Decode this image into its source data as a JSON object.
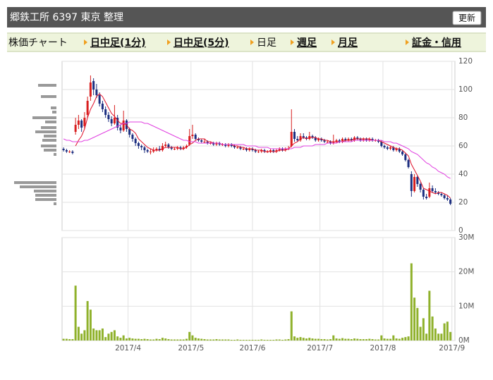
{
  "header": {
    "title": "郷鉄工所 6397 東京 整理",
    "button": "更新"
  },
  "nav": [
    {
      "label": "株価チャート",
      "link": false
    },
    {
      "label": "日中足(1分)",
      "link": true
    },
    {
      "label": "日中足(5分)",
      "link": true
    },
    {
      "label": "日足",
      "link": false
    },
    {
      "label": "週足",
      "link": true
    },
    {
      "label": "月足",
      "link": true
    },
    {
      "label": "証金・信用",
      "link": true
    }
  ],
  "chart_data": [
    {
      "type": "candlestick",
      "up_color": "#d81e1e",
      "down_color": "#1c2e80",
      "grid": true,
      "xlim": [
        -0.5,
        130.5
      ],
      "ylim": [
        0,
        120
      ],
      "yticks": [
        0,
        20,
        40,
        60,
        80,
        100,
        120
      ],
      "xticks": [
        21.5,
        42.5,
        63,
        85.5,
        106.5,
        129.5
      ],
      "ohlc": [
        [
          58,
          59,
          56,
          57
        ],
        [
          57,
          58,
          55,
          56
        ],
        [
          56,
          57,
          55,
          56
        ],
        [
          56,
          57,
          54,
          55
        ],
        [
          70,
          80,
          68,
          75
        ],
        [
          75,
          82,
          72,
          78
        ],
        [
          78,
          79,
          70,
          73
        ],
        [
          74,
          84,
          72,
          80
        ],
        [
          82,
          95,
          80,
          92
        ],
        [
          95,
          110,
          92,
          105
        ],
        [
          106,
          108,
          96,
          100
        ],
        [
          100,
          104,
          94,
          96
        ],
        [
          96,
          98,
          88,
          90
        ],
        [
          90,
          92,
          84,
          86
        ],
        [
          86,
          88,
          80,
          82
        ],
        [
          82,
          84,
          77,
          79
        ],
        [
          79,
          81,
          74,
          76
        ],
        [
          76,
          89,
          75,
          80
        ],
        [
          80,
          82,
          71,
          73
        ],
        [
          73,
          75,
          69,
          71
        ],
        [
          71,
          85,
          70,
          78
        ],
        [
          78,
          79,
          70,
          72
        ],
        [
          72,
          73,
          66,
          68
        ],
        [
          68,
          69,
          63,
          65
        ],
        [
          65,
          66,
          60,
          62
        ],
        [
          62,
          63,
          58,
          60
        ],
        [
          60,
          61,
          57,
          59
        ],
        [
          59,
          60,
          55,
          57
        ],
        [
          57,
          58,
          55,
          56
        ],
        [
          56,
          58,
          54,
          56
        ],
        [
          56,
          59,
          55,
          57
        ],
        [
          57,
          59,
          56,
          58
        ],
        [
          58,
          60,
          56,
          57
        ],
        [
          57,
          62,
          56,
          60
        ],
        [
          60,
          63,
          59,
          61
        ],
        [
          61,
          62,
          58,
          59
        ],
        [
          59,
          60,
          57,
          58
        ],
        [
          58,
          59,
          57,
          58
        ],
        [
          58,
          60,
          57,
          59
        ],
        [
          59,
          60,
          57,
          58
        ],
        [
          58,
          60,
          57,
          59
        ],
        [
          59,
          61,
          58,
          60
        ],
        [
          61,
          72,
          60,
          67
        ],
        [
          67,
          75,
          65,
          68
        ],
        [
          68,
          69,
          64,
          65
        ],
        [
          65,
          66,
          63,
          64
        ],
        [
          64,
          65,
          62,
          63
        ],
        [
          63,
          65,
          62,
          63
        ],
        [
          63,
          64,
          61,
          62
        ],
        [
          62,
          63,
          61,
          62
        ],
        [
          62,
          63,
          60,
          61
        ],
        [
          61,
          63,
          60,
          62
        ],
        [
          62,
          63,
          60,
          61
        ],
        [
          61,
          62,
          60,
          61
        ],
        [
          61,
          62,
          59,
          60
        ],
        [
          60,
          62,
          59,
          61
        ],
        [
          61,
          62,
          59,
          60
        ],
        [
          60,
          61,
          58,
          59
        ],
        [
          59,
          60,
          58,
          59
        ],
        [
          59,
          60,
          57,
          58
        ],
        [
          58,
          59,
          57,
          58
        ],
        [
          58,
          59,
          56,
          57
        ],
        [
          57,
          59,
          56,
          58
        ],
        [
          58,
          59,
          56,
          57
        ],
        [
          57,
          58,
          55,
          56
        ],
        [
          56,
          57,
          55,
          56
        ],
        [
          56,
          58,
          55,
          57
        ],
        [
          57,
          58,
          55,
          56
        ],
        [
          56,
          57,
          55,
          56
        ],
        [
          56,
          58,
          55,
          57
        ],
        [
          57,
          58,
          55,
          56
        ],
        [
          56,
          58,
          55,
          57
        ],
        [
          57,
          59,
          56,
          58
        ],
        [
          58,
          59,
          56,
          57
        ],
        [
          57,
          59,
          56,
          58
        ],
        [
          58,
          60,
          57,
          58
        ],
        [
          60,
          86,
          59,
          70
        ],
        [
          70,
          72,
          63,
          65
        ],
        [
          65,
          67,
          63,
          64
        ],
        [
          64,
          69,
          63,
          67
        ],
        [
          67,
          69,
          65,
          66
        ],
        [
          66,
          67,
          64,
          65
        ],
        [
          65,
          70,
          64,
          67
        ],
        [
          67,
          68,
          65,
          66
        ],
        [
          66,
          67,
          63,
          64
        ],
        [
          64,
          66,
          63,
          65
        ],
        [
          65,
          66,
          63,
          64
        ],
        [
          64,
          65,
          62,
          63
        ],
        [
          63,
          64,
          62,
          63
        ],
        [
          63,
          64,
          61,
          62
        ],
        [
          62,
          68,
          61,
          63
        ],
        [
          63,
          65,
          62,
          64
        ],
        [
          64,
          65,
          62,
          63
        ],
        [
          63,
          66,
          62,
          65
        ],
        [
          65,
          66,
          63,
          64
        ],
        [
          64,
          66,
          63,
          65
        ],
        [
          65,
          66,
          63,
          64
        ],
        [
          64,
          67,
          63,
          66
        ],
        [
          66,
          67,
          64,
          65
        ],
        [
          65,
          66,
          63,
          64
        ],
        [
          64,
          66,
          63,
          65
        ],
        [
          65,
          66,
          63,
          64
        ],
        [
          64,
          66,
          63,
          65
        ],
        [
          65,
          66,
          63,
          64
        ],
        [
          64,
          65,
          63,
          64
        ],
        [
          64,
          65,
          62,
          63
        ],
        [
          63,
          64,
          59,
          60
        ],
        [
          60,
          61,
          58,
          59
        ],
        [
          59,
          60,
          57,
          58
        ],
        [
          58,
          60,
          57,
          59
        ],
        [
          59,
          60,
          56,
          57
        ],
        [
          57,
          59,
          56,
          58
        ],
        [
          58,
          59,
          55,
          56
        ],
        [
          56,
          57,
          53,
          54
        ],
        [
          54,
          55,
          49,
          50
        ],
        [
          50,
          51,
          44,
          45
        ],
        [
          40,
          42,
          24,
          28
        ],
        [
          28,
          40,
          27,
          38
        ],
        [
          38,
          39,
          31,
          33
        ],
        [
          33,
          34,
          27,
          29
        ],
        [
          29,
          30,
          22,
          24
        ],
        [
          24,
          26,
          22,
          23
        ],
        [
          24,
          34,
          23,
          30
        ],
        [
          30,
          32,
          27,
          28
        ],
        [
          28,
          30,
          26,
          27
        ],
        [
          27,
          28,
          25,
          26
        ],
        [
          26,
          27,
          24,
          25
        ],
        [
          25,
          26,
          22,
          23
        ],
        [
          23,
          25,
          21,
          22
        ],
        [
          22,
          23,
          18,
          19
        ]
      ],
      "series": [
        {
          "color": "#e0102a",
          "values": [
            null,
            null,
            null,
            null,
            60,
            64,
            67,
            72,
            80,
            86,
            90,
            95,
            97,
            95,
            91,
            87,
            83,
            81,
            78,
            76,
            76,
            75,
            72,
            71,
            69,
            65,
            63,
            61,
            59,
            58,
            57,
            57,
            57,
            58,
            59,
            59,
            59,
            59,
            59,
            58,
            58,
            59,
            61,
            62,
            64,
            65,
            65,
            65,
            63,
            63,
            62,
            62,
            62,
            61,
            61,
            61,
            61,
            60,
            60,
            59,
            59,
            58,
            58,
            58,
            57,
            57,
            57,
            56,
            56,
            56,
            56,
            56,
            57,
            57,
            57,
            58,
            60,
            62,
            63,
            65,
            66,
            65,
            66,
            66,
            66,
            65,
            65,
            64,
            64,
            63,
            63,
            63,
            63,
            63,
            64,
            64,
            64,
            65,
            65,
            65,
            65,
            65,
            65,
            64,
            64,
            64,
            63,
            62,
            61,
            60,
            59,
            58,
            58,
            57,
            55,
            53,
            47,
            43,
            39,
            35,
            30,
            29,
            28,
            27,
            26,
            27,
            27,
            26,
            25,
            23
          ]
        },
        {
          "color": "#e040e0",
          "values": [
            65,
            64,
            64,
            63,
            63,
            63,
            63,
            64,
            64,
            65,
            66,
            67,
            68,
            69,
            70,
            71,
            72,
            73,
            74,
            75,
            76,
            76,
            77,
            77,
            77,
            77,
            77,
            76,
            76,
            75,
            74,
            73,
            72,
            71,
            70,
            69,
            68,
            67,
            66,
            65,
            64,
            64,
            63,
            63,
            63,
            62,
            62,
            62,
            62,
            62,
            62,
            62,
            62,
            61,
            61,
            61,
            61,
            61,
            61,
            61,
            61,
            60,
            60,
            60,
            60,
            59,
            59,
            59,
            59,
            58,
            58,
            58,
            58,
            58,
            58,
            58,
            58,
            59,
            59,
            59,
            60,
            60,
            60,
            60,
            61,
            61,
            61,
            61,
            62,
            62,
            62,
            62,
            63,
            63,
            63,
            63,
            63,
            64,
            64,
            64,
            64,
            64,
            64,
            64,
            64,
            64,
            64,
            63,
            63,
            63,
            62,
            62,
            61,
            60,
            59,
            58,
            56,
            55,
            54,
            52,
            50,
            48,
            47,
            45,
            44,
            42,
            41,
            40,
            38,
            37
          ]
        }
      ],
      "volume_by_price": {
        "color": "#999999",
        "prices": [
          103,
          95,
          87,
          84,
          80,
          77,
          73,
          70,
          67,
          64,
          60,
          57,
          54,
          34,
          31,
          28,
          25,
          22,
          19
        ],
        "volumes": [
          26,
          22,
          8,
          6,
          34,
          16,
          22,
          30,
          18,
          20,
          22,
          18,
          4,
          60,
          52,
          32,
          30,
          30,
          4
        ]
      }
    },
    {
      "type": "bar",
      "color": "#8fb12b",
      "grid": true,
      "xlim": [
        -0.5,
        130.5
      ],
      "ylim": [
        0,
        30
      ],
      "yticks": [
        {
          "value": 0,
          "label": "0M"
        },
        {
          "value": 10,
          "label": "10M"
        },
        {
          "value": 20,
          "label": "20M"
        },
        {
          "value": 30,
          "label": "30M"
        }
      ],
      "xticks": [
        {
          "value": 21.5,
          "label": "2017/4"
        },
        {
          "value": 42.5,
          "label": "2017/5"
        },
        {
          "value": 63,
          "label": "2017/6"
        },
        {
          "value": 85.5,
          "label": "2017/7"
        },
        {
          "value": 106.5,
          "label": "2017/8"
        },
        {
          "value": 129.5,
          "label": "2017/9"
        }
      ],
      "values": [
        0.5,
        0.5,
        0.4,
        0.4,
        16,
        4,
        2,
        3,
        11.5,
        9,
        3.5,
        3,
        3,
        3.5,
        1,
        2,
        2.5,
        3,
        1.2,
        0.8,
        1.5,
        0.6,
        0.8,
        0.6,
        0.5,
        0.5,
        0.4,
        0.5,
        0.4,
        0.3,
        0.3,
        0.5,
        0.4,
        0.8,
        0.6,
        0.4,
        0.3,
        0.3,
        0.3,
        0.3,
        0.3,
        0.5,
        2.5,
        1.5,
        0.8,
        0.6,
        0.5,
        0.4,
        0.3,
        0.3,
        0.3,
        0.4,
        0.3,
        0.3,
        0.3,
        0.3,
        0.2,
        0.2,
        0.3,
        0.2,
        0.2,
        0.2,
        0.2,
        0.2,
        0.2,
        0.2,
        0.3,
        0.2,
        0.2,
        0.2,
        0.2,
        0.3,
        0.3,
        0.2,
        0.3,
        0.4,
        8.5,
        1.2,
        0.8,
        1,
        0.8,
        0.6,
        0.8,
        0.6,
        0.5,
        0.5,
        0.4,
        0.4,
        0.3,
        0.4,
        1.5,
        0.6,
        0.5,
        0.7,
        0.5,
        0.5,
        0.4,
        0.6,
        0.5,
        0.4,
        0.4,
        0.4,
        0.5,
        0.4,
        0.3,
        0.3,
        1.5,
        0.6,
        0.5,
        0.5,
        1.5,
        0.6,
        0.5,
        0.8,
        1,
        1.2,
        22.5,
        12.5,
        9.5,
        4,
        6.5,
        2,
        14.5,
        7,
        3.5,
        2,
        2,
        5,
        5.5,
        2.5
      ]
    }
  ]
}
